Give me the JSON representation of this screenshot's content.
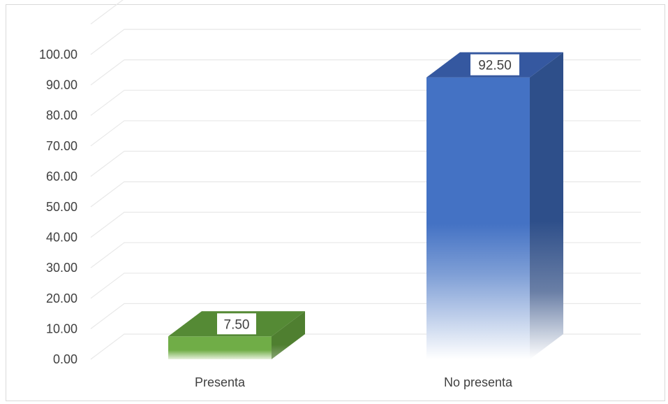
{
  "chart_data": {
    "type": "bar",
    "style": "3d-column",
    "categories": [
      "Presenta",
      "No presenta"
    ],
    "values": [
      7.5,
      92.5
    ],
    "data_labels": [
      "7.50",
      "92.50"
    ],
    "ylim": [
      0,
      100
    ],
    "ytick_step": 10,
    "ytick_labels": [
      "0.00",
      "10.00",
      "20.00",
      "30.00",
      "40.00",
      "50.00",
      "60.00",
      "70.00",
      "80.00",
      "90.00",
      "100.00"
    ],
    "grid": true,
    "legend": "none",
    "colors": {
      "Presenta": {
        "front": "#70ad47",
        "side": "#4f7f30",
        "top": "#558a35"
      },
      "No presenta": {
        "front": "#4472c4",
        "side": "#2e4f8a",
        "top": "#3558a0"
      },
      "grid": "#e8e8e8",
      "frame": "#d9d9d9"
    }
  }
}
